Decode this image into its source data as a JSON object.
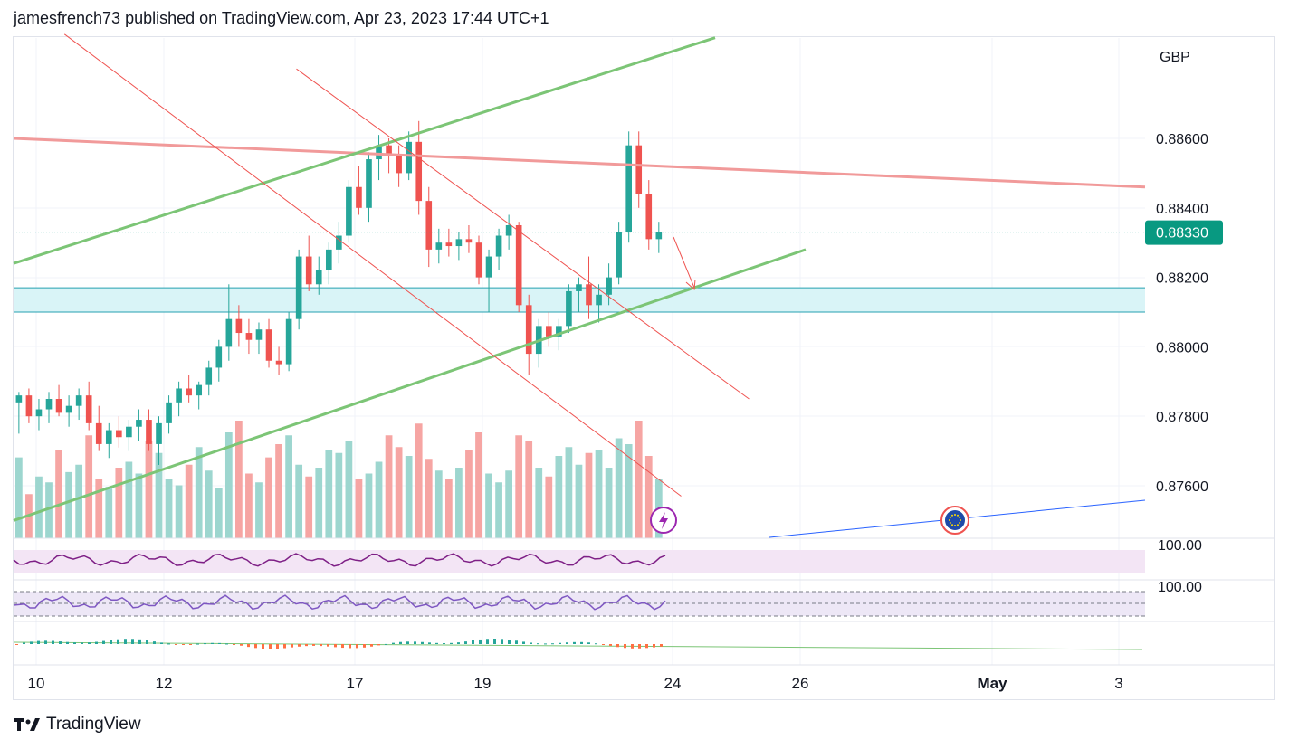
{
  "header": {
    "text": "jamesfrench73 published on TradingView.com, Apr 23, 2023 17:44 UTC+1"
  },
  "footer": {
    "brand": "TradingView",
    "logo_icon": "tradingview-logo-icon"
  },
  "colors": {
    "up": "#26a69a",
    "down": "#ef5350",
    "vol_up": "#9dd6cf",
    "vol_down": "#f6a5a3",
    "resistance": "#f19a9a",
    "channel_green": "#7cc576",
    "down_channel": "#ef5350",
    "zone": "#d9f4f7",
    "zone_border": "#26a0b0",
    "last_price_bg": "#089981",
    "rsi": "#7e1f86",
    "stoch": "#7e57c2",
    "trend_blue": "#2962ff"
  },
  "chart_data": {
    "type": "candlestick",
    "symbol_currency": "GBP",
    "last_price": "0.88330",
    "price_axis": {
      "min": 0.875,
      "max": 0.888,
      "ticks": [
        "0.88600",
        "0.88400",
        "0.88200",
        "0.88000",
        "0.87800",
        "0.87600"
      ]
    },
    "time_axis": [
      "10",
      "12",
      "17",
      "19",
      "24",
      "26",
      "May",
      "3"
    ],
    "pane_labels": [
      "100.00",
      "100.00"
    ],
    "support_zone": [
      0.881,
      0.8817
    ],
    "drawings": [
      {
        "name": "resistance-line",
        "points": [
          [
            0,
            0.886
          ],
          [
            1.0,
            0.8846
          ]
        ]
      },
      {
        "name": "upper-channel-line",
        "points": [
          [
            0,
            0.8824
          ],
          [
            0.62,
            0.8889
          ]
        ]
      },
      {
        "name": "lower-channel-line",
        "points": [
          [
            0,
            0.875
          ],
          [
            0.7,
            0.8828
          ]
        ]
      },
      {
        "name": "downtrend-line-1",
        "points": [
          [
            0.045,
            0.889
          ],
          [
            0.59,
            0.8757
          ]
        ]
      },
      {
        "name": "downtrend-line-2",
        "points": [
          [
            0.25,
            0.888
          ],
          [
            0.65,
            0.8785
          ]
        ]
      }
    ],
    "candles": [
      [
        0.8784,
        0.8787,
        0.8775,
        0.8786
      ],
      [
        0.8786,
        0.8788,
        0.8778,
        0.878
      ],
      [
        0.878,
        0.8785,
        0.8776,
        0.8782
      ],
      [
        0.8782,
        0.8787,
        0.8778,
        0.8785
      ],
      [
        0.8785,
        0.8789,
        0.878,
        0.8781
      ],
      [
        0.8781,
        0.8786,
        0.8777,
        0.8783
      ],
      [
        0.8783,
        0.8788,
        0.8779,
        0.8786
      ],
      [
        0.8786,
        0.879,
        0.8776,
        0.8778
      ],
      [
        0.8778,
        0.8783,
        0.877,
        0.8772
      ],
      [
        0.8772,
        0.8778,
        0.8768,
        0.8776
      ],
      [
        0.8776,
        0.878,
        0.8771,
        0.8774
      ],
      [
        0.8774,
        0.8779,
        0.877,
        0.8777
      ],
      [
        0.8777,
        0.8782,
        0.8773,
        0.8779
      ],
      [
        0.8779,
        0.8782,
        0.877,
        0.8772
      ],
      [
        0.8772,
        0.878,
        0.8766,
        0.8778
      ],
      [
        0.8778,
        0.8786,
        0.8775,
        0.8784
      ],
      [
        0.8784,
        0.879,
        0.878,
        0.8788
      ],
      [
        0.8788,
        0.8792,
        0.8784,
        0.8786
      ],
      [
        0.8786,
        0.879,
        0.8782,
        0.8789
      ],
      [
        0.8789,
        0.8796,
        0.8786,
        0.8794
      ],
      [
        0.8794,
        0.8802,
        0.879,
        0.88
      ],
      [
        0.88,
        0.8818,
        0.8796,
        0.8808
      ],
      [
        0.8808,
        0.8812,
        0.88,
        0.8804
      ],
      [
        0.8804,
        0.8808,
        0.8798,
        0.8802
      ],
      [
        0.8802,
        0.8807,
        0.8798,
        0.8805
      ],
      [
        0.8805,
        0.8808,
        0.8794,
        0.8796
      ],
      [
        0.8796,
        0.88,
        0.8792,
        0.8795
      ],
      [
        0.8795,
        0.881,
        0.8793,
        0.8808
      ],
      [
        0.8808,
        0.8828,
        0.8805,
        0.8826
      ],
      [
        0.8826,
        0.8832,
        0.8816,
        0.8818
      ],
      [
        0.8818,
        0.8826,
        0.8815,
        0.8822
      ],
      [
        0.8822,
        0.883,
        0.8818,
        0.8828
      ],
      [
        0.8828,
        0.8836,
        0.8824,
        0.8832
      ],
      [
        0.8832,
        0.8848,
        0.883,
        0.8846
      ],
      [
        0.8846,
        0.8852,
        0.8838,
        0.884
      ],
      [
        0.884,
        0.8856,
        0.8836,
        0.8854
      ],
      [
        0.8854,
        0.8861,
        0.8848,
        0.8858
      ],
      [
        0.8858,
        0.886,
        0.885,
        0.8855
      ],
      [
        0.8855,
        0.8858,
        0.8846,
        0.885
      ],
      [
        0.885,
        0.8862,
        0.8848,
        0.8859
      ],
      [
        0.8859,
        0.8865,
        0.8838,
        0.8842
      ],
      [
        0.8842,
        0.8846,
        0.8823,
        0.8828
      ],
      [
        0.8828,
        0.8834,
        0.8824,
        0.883
      ],
      [
        0.883,
        0.8834,
        0.8826,
        0.8829
      ],
      [
        0.8829,
        0.8833,
        0.8825,
        0.8831
      ],
      [
        0.8831,
        0.8835,
        0.8827,
        0.883
      ],
      [
        0.883,
        0.8832,
        0.8818,
        0.882
      ],
      [
        0.882,
        0.8828,
        0.881,
        0.8826
      ],
      [
        0.8826,
        0.8834,
        0.8822,
        0.8832
      ],
      [
        0.8832,
        0.8838,
        0.8828,
        0.8835
      ],
      [
        0.8835,
        0.8836,
        0.881,
        0.8812
      ],
      [
        0.8812,
        0.8815,
        0.8792,
        0.8798
      ],
      [
        0.8798,
        0.8808,
        0.8794,
        0.8806
      ],
      [
        0.8806,
        0.881,
        0.88,
        0.8803
      ],
      [
        0.8803,
        0.8808,
        0.8799,
        0.8806
      ],
      [
        0.8806,
        0.8818,
        0.8804,
        0.8816
      ],
      [
        0.8816,
        0.882,
        0.881,
        0.8818
      ],
      [
        0.8818,
        0.8826,
        0.8808,
        0.8812
      ],
      [
        0.8812,
        0.8818,
        0.8807,
        0.8815
      ],
      [
        0.8815,
        0.8824,
        0.8812,
        0.882
      ],
      [
        0.882,
        0.8836,
        0.8818,
        0.8833
      ],
      [
        0.8833,
        0.8862,
        0.883,
        0.8858
      ],
      [
        0.8858,
        0.8862,
        0.884,
        0.8844
      ],
      [
        0.8844,
        0.8848,
        0.8828,
        0.8831
      ],
      [
        0.8831,
        0.8836,
        0.8827,
        0.8833
      ]
    ],
    "volumes": [
      55,
      30,
      42,
      38,
      60,
      45,
      50,
      70,
      40,
      35,
      48,
      52,
      44,
      66,
      58,
      40,
      36,
      50,
      62,
      46,
      34,
      72,
      80,
      44,
      38,
      55,
      64,
      70,
      50,
      42,
      48,
      60,
      58,
      66,
      40,
      44,
      52,
      70,
      62,
      56,
      78,
      54,
      46,
      40,
      48,
      60,
      72,
      44,
      38,
      46,
      70,
      66,
      48,
      42,
      56,
      62,
      50,
      58,
      60,
      48,
      68,
      64,
      80,
      56,
      40
    ]
  }
}
